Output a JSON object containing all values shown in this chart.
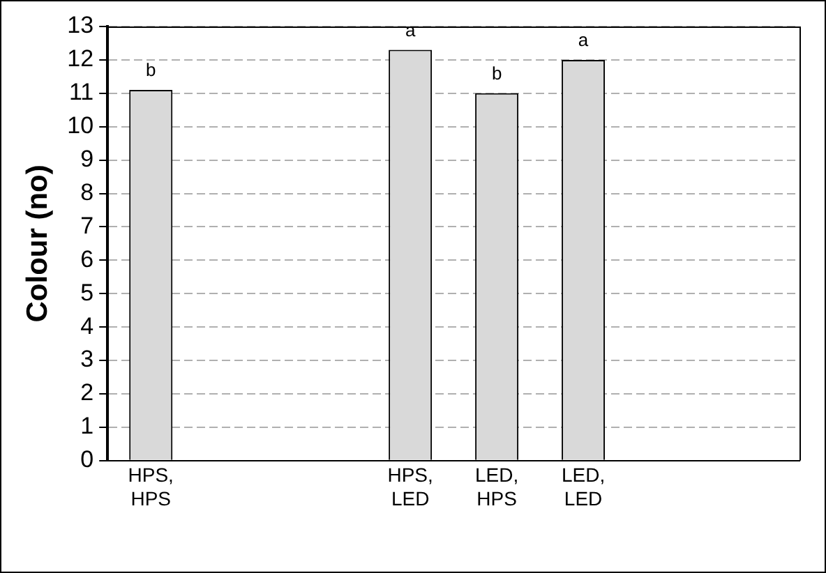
{
  "chart_data": {
    "type": "bar",
    "ylabel": "Colour (no)",
    "categories": [
      "HPS, HPS",
      null,
      null,
      "HPS, LED",
      "LED, HPS",
      "LED, LED",
      null,
      null
    ],
    "values": [
      11.1,
      null,
      null,
      12.3,
      11.0,
      12.0,
      null,
      null
    ],
    "color": "#d9d9d9",
    "ylim": [
      0,
      13
    ],
    "yticks": [
      0,
      1,
      2,
      3,
      4,
      5,
      6,
      7,
      8,
      9,
      10,
      11,
      12,
      13
    ],
    "grid": "y",
    "legend": false,
    "annotations": [
      {
        "text": "b",
        "x": "HPS, HPS",
        "y": 11.1
      },
      {
        "text": "a",
        "x": "HPS, LED",
        "y": 12.3
      },
      {
        "text": "b",
        "x": "LED, HPS",
        "y": 11.0
      },
      {
        "text": "a",
        "x": "LED, LED",
        "y": 12.0
      }
    ]
  }
}
